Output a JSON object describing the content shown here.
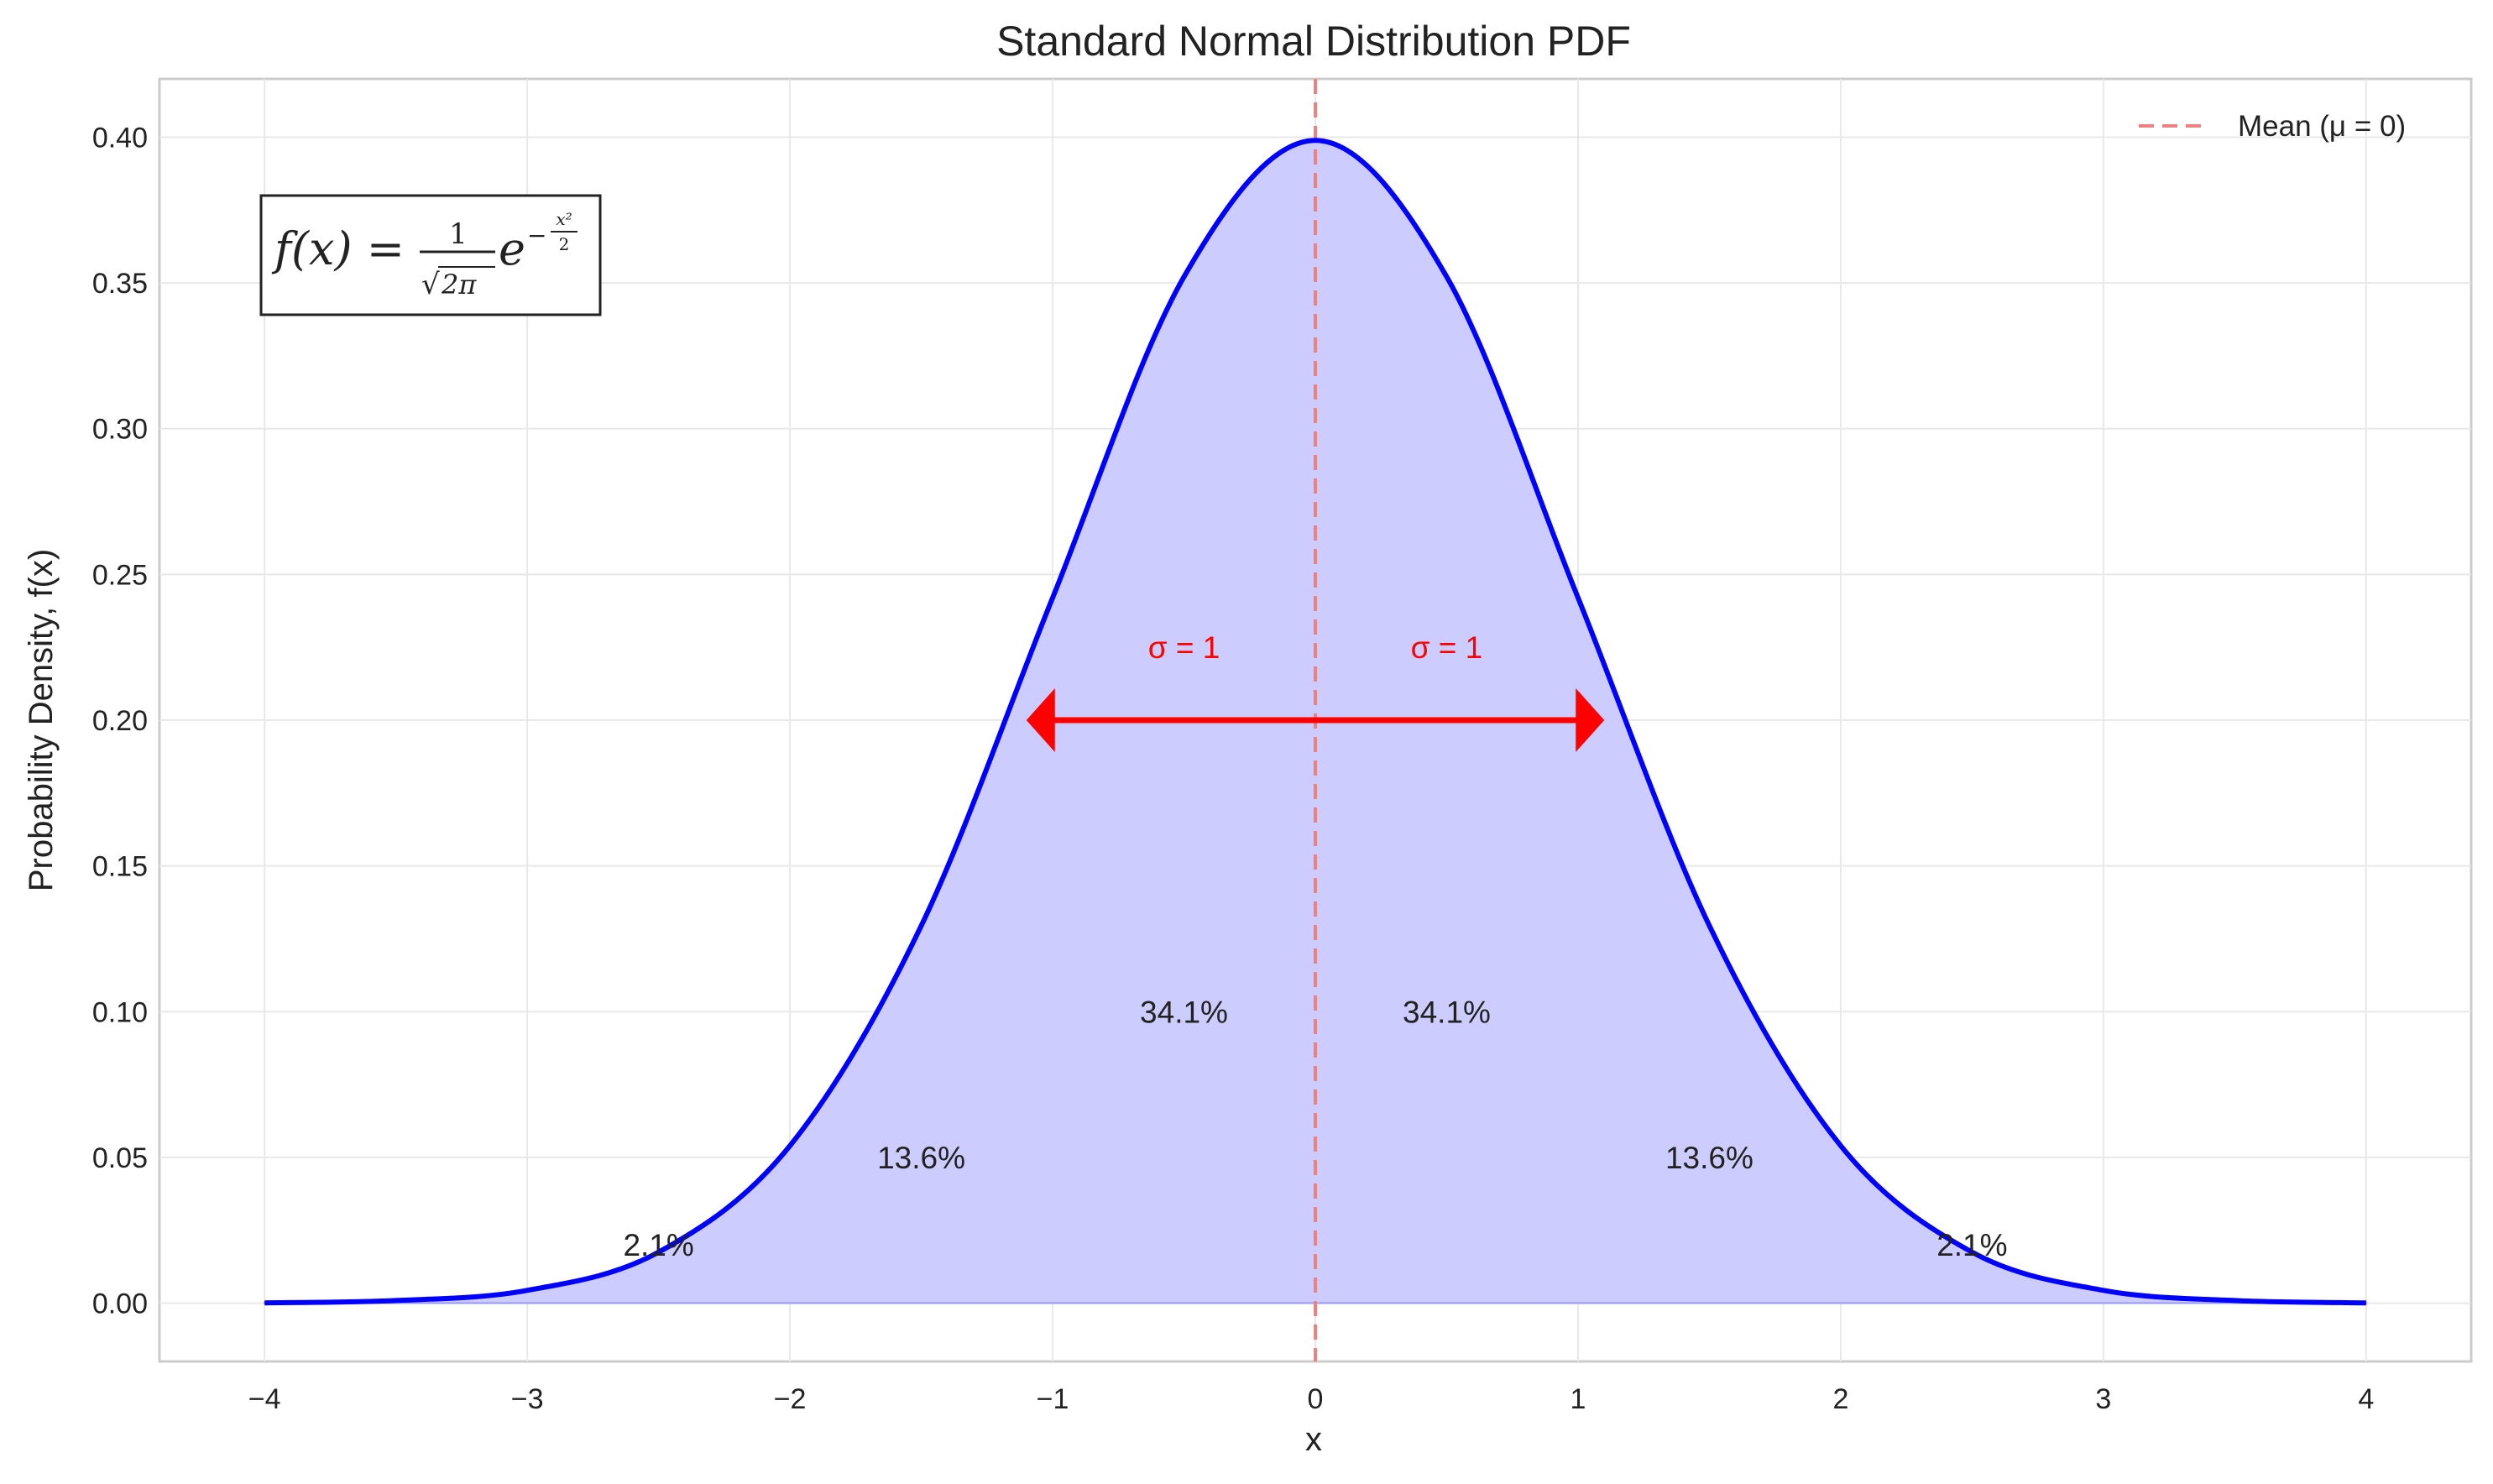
{
  "chart_data": {
    "type": "line",
    "title": "Standard Normal Distribution PDF",
    "xlabel": "x",
    "ylabel": "Probability Density, f(x)",
    "xlim": [
      -4.4,
      4.4
    ],
    "ylim": [
      -0.02,
      0.42
    ],
    "xticks": [
      -4,
      -3,
      -2,
      -1,
      0,
      1,
      2,
      3,
      4
    ],
    "xtick_labels": [
      "−4",
      "−3",
      "−2",
      "−1",
      "0",
      "1",
      "2",
      "3",
      "4"
    ],
    "yticks": [
      0.0,
      0.05,
      0.1,
      0.15,
      0.2,
      0.25,
      0.3,
      0.35,
      0.4
    ],
    "ytick_labels": [
      "0.00",
      "0.05",
      "0.10",
      "0.15",
      "0.20",
      "0.25",
      "0.30",
      "0.35",
      "0.40"
    ],
    "grid": true,
    "series": [
      {
        "type": "line",
        "color": "#0000ff",
        "fill_color": "#ccccff",
        "x": [
          -4.0,
          -3.5,
          -3.0,
          -2.5,
          -2.0,
          -1.5,
          -1.0,
          -0.5,
          0.0,
          0.5,
          1.0,
          1.5,
          2.0,
          2.5,
          3.0,
          3.5,
          4.0
        ],
        "y": [
          0.0001,
          0.0009,
          0.0044,
          0.0175,
          0.054,
          0.1295,
          0.242,
          0.3521,
          0.3989,
          0.3521,
          0.242,
          0.1295,
          0.054,
          0.0175,
          0.0044,
          0.0009,
          0.0001
        ]
      }
    ],
    "mean_line": {
      "x": 0,
      "color": "#f08080",
      "label": "Mean (μ = 0)"
    },
    "legend": {
      "position": "top-right",
      "entries": [
        "Mean (μ = 0)"
      ]
    },
    "sigma_arrow": {
      "from": -1.1,
      "to": 1.1,
      "y": 0.2,
      "color": "#ff0000"
    },
    "annotations": [
      {
        "text": "σ = 1",
        "x": -0.5,
        "y": 0.225,
        "color": "#ff0000"
      },
      {
        "text": "σ = 1",
        "x": 0.5,
        "y": 0.225,
        "color": "#ff0000"
      },
      {
        "text": "34.1%",
        "x": -0.5,
        "y": 0.1
      },
      {
        "text": "34.1%",
        "x": 0.5,
        "y": 0.1
      },
      {
        "text": "13.6%",
        "x": -1.5,
        "y": 0.05
      },
      {
        "text": "13.6%",
        "x": 1.5,
        "y": 0.05
      },
      {
        "text": "2.1%",
        "x": -2.5,
        "y": 0.02
      },
      {
        "text": "2.1%",
        "x": 2.5,
        "y": 0.02
      }
    ],
    "formula": {
      "lhs": "f(x) =",
      "numerator": "1",
      "sqrt": "√",
      "denominator": "2π",
      "base": "e",
      "exp_sign": "−",
      "exp_num": "x²",
      "exp_den": "2"
    }
  }
}
